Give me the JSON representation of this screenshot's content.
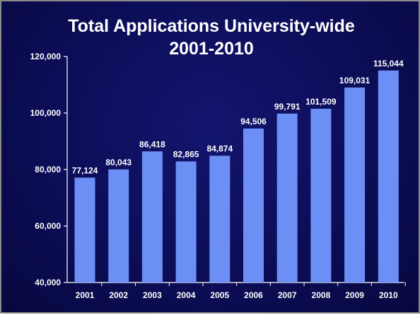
{
  "chart_data": {
    "type": "bar",
    "title": "Total Applications University-wide",
    "subtitle": "2001-2010",
    "xlabel": "",
    "ylabel": "",
    "categories": [
      "2001",
      "2002",
      "2003",
      "2004",
      "2005",
      "2006",
      "2007",
      "2008",
      "2009",
      "2010"
    ],
    "values": [
      77124,
      80043,
      86418,
      82865,
      84874,
      94506,
      99791,
      101509,
      109031,
      115044
    ],
    "value_labels": [
      "77,124",
      "80,043",
      "86,418",
      "82,865",
      "84,874",
      "94,506",
      "99,791",
      "101,509",
      "109,031",
      "115,044"
    ],
    "ylim": [
      40000,
      120000
    ],
    "yticks": [
      40000,
      60000,
      80000,
      100000,
      120000
    ],
    "ytick_labels": [
      "40,000",
      "60,000",
      "80,000",
      "100,000",
      "120,000"
    ],
    "grid": false,
    "legend": "none",
    "colors": {
      "bar": "#6b8ff5",
      "background": "#0c0d57",
      "axis": "#ffffff",
      "text": "#ffffff"
    }
  }
}
